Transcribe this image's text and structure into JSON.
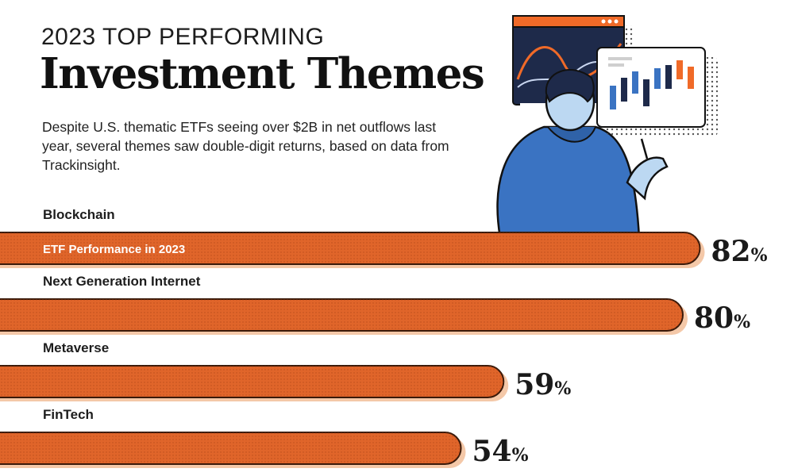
{
  "header": {
    "kicker": "2023 TOP PERFORMING",
    "title": "Investment Themes",
    "subtitle": "Despite U.S. thematic ETFs seeing over $2B in net outflows last year, several themes saw double-digit returns, based on data from Trackinsight."
  },
  "colors": {
    "bar": "#e0652a",
    "bar_outline": "#3a1a0a",
    "bar_shadow": "#f4c8a8",
    "hoodie": "#3a73c2",
    "screen_dark": "#1e2a4a",
    "accent_orange": "#f06a28"
  },
  "chart_data": {
    "type": "bar",
    "orientation": "horizontal",
    "bar_annotation": "ETF Performance in 2023",
    "categories": [
      "Blockchain",
      "Next Generation Internet",
      "Metaverse",
      "FinTech"
    ],
    "values": [
      82,
      80,
      59,
      54
    ],
    "unit": "%",
    "xlim": [
      0,
      100
    ],
    "grid": false,
    "legend": "none"
  }
}
